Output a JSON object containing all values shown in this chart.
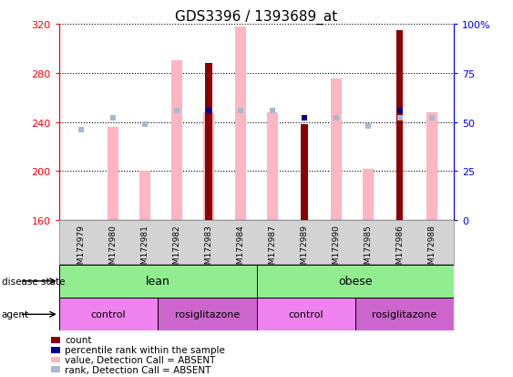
{
  "title": "GDS3396 / 1393689_at",
  "samples": [
    "GSM172979",
    "GSM172980",
    "GSM172981",
    "GSM172982",
    "GSM172983",
    "GSM172984",
    "GSM172987",
    "GSM172989",
    "GSM172990",
    "GSM172985",
    "GSM172986",
    "GSM172988"
  ],
  "ylim_left": [
    160,
    320
  ],
  "ylim_right": [
    0,
    100
  ],
  "yticks_left": [
    160,
    200,
    240,
    280,
    320
  ],
  "yticks_right": [
    0,
    25,
    50,
    75,
    100
  ],
  "count_values": [
    null,
    null,
    null,
    null,
    288,
    null,
    null,
    238,
    null,
    null,
    315,
    null
  ],
  "rank_values_pct": [
    null,
    null,
    null,
    null,
    56,
    null,
    null,
    52,
    null,
    null,
    56,
    null
  ],
  "value_absent": [
    null,
    236,
    200,
    290,
    248,
    318,
    248,
    null,
    275,
    202,
    null,
    248
  ],
  "rank_absent_pct": [
    46,
    52,
    49,
    56,
    null,
    56,
    56,
    null,
    52,
    48,
    52,
    52
  ],
  "color_count": "#8b0000",
  "color_rank": "#00008b",
  "color_value_absent": "#ffb6c1",
  "color_rank_absent": "#aab8d0",
  "legend_items": [
    {
      "color": "#8b0000",
      "label": "count"
    },
    {
      "color": "#00008b",
      "label": "percentile rank within the sample"
    },
    {
      "color": "#ffb6c1",
      "label": "value, Detection Call = ABSENT"
    },
    {
      "color": "#aab8d0",
      "label": "rank, Detection Call = ABSENT"
    }
  ]
}
